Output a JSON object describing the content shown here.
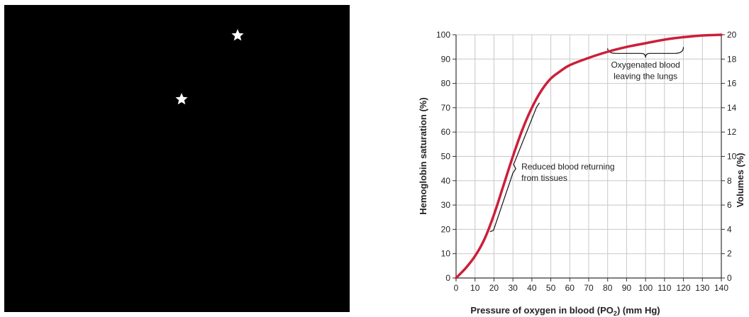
{
  "chart_data": {
    "type": "line",
    "xlabel": "Pressure of oxygen in blood (PO",
    "xlabel_sub": "2",
    "xlabel_tail": ") (mm Hg)",
    "ylabel_left": "Hemoglobin saturation (%)",
    "ylabel_right": "Volumes (%)",
    "xlim": [
      0,
      140
    ],
    "ylim_left": [
      0,
      100
    ],
    "ylim_right": [
      0,
      20
    ],
    "x_ticks": [
      "0",
      "10",
      "20",
      "30",
      "40",
      "50",
      "60",
      "70",
      "80",
      "90",
      "100",
      "110",
      "120",
      "130",
      "140"
    ],
    "y_left_ticks": [
      "0",
      "10",
      "20",
      "30",
      "40",
      "50",
      "60",
      "70",
      "80",
      "90",
      "100"
    ],
    "y_right_ticks": [
      "0",
      "2",
      "4",
      "6",
      "8",
      "10",
      "12",
      "14",
      "16",
      "18",
      "20"
    ],
    "grid": true,
    "series": [
      {
        "color": "#cc1f3a",
        "x": [
          0,
          5,
          10,
          15,
          20,
          25,
          30,
          35,
          40,
          45,
          50,
          55,
          60,
          70,
          80,
          90,
          100,
          110,
          120,
          130,
          140
        ],
        "y": [
          0,
          4,
          9,
          16,
          26,
          38,
          50,
          61,
          70,
          77,
          82,
          85,
          87.5,
          90.5,
          93,
          95,
          96.5,
          98,
          99,
          99.7,
          100
        ]
      }
    ],
    "annotations": [
      {
        "lines": [
          "Oxygenated blood",
          "leaving the lungs"
        ]
      },
      {
        "lines": [
          "Reduced blood returning",
          "from tissues"
        ]
      }
    ]
  },
  "left_panel": {
    "background": "#000000",
    "stars": [
      {
        "icon": "star-icon",
        "color": "#ffffff"
      },
      {
        "icon": "star-icon",
        "color": "#ffffff"
      }
    ]
  }
}
